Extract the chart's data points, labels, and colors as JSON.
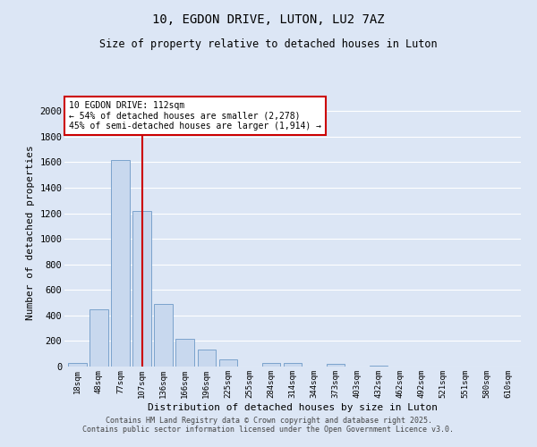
{
  "title_line1": "10, EGDON DRIVE, LUTON, LU2 7AZ",
  "title_line2": "Size of property relative to detached houses in Luton",
  "xlabel": "Distribution of detached houses by size in Luton",
  "ylabel": "Number of detached properties",
  "categories": [
    "18sqm",
    "48sqm",
    "77sqm",
    "107sqm",
    "136sqm",
    "166sqm",
    "196sqm",
    "225sqm",
    "255sqm",
    "284sqm",
    "314sqm",
    "344sqm",
    "373sqm",
    "403sqm",
    "432sqm",
    "462sqm",
    "492sqm",
    "521sqm",
    "551sqm",
    "580sqm",
    "610sqm"
  ],
  "values": [
    30,
    450,
    1620,
    1220,
    490,
    215,
    130,
    55,
    0,
    30,
    30,
    0,
    20,
    0,
    10,
    0,
    0,
    0,
    0,
    0,
    0
  ],
  "bar_color": "#c8d8ee",
  "bar_edgecolor": "#7ba3cc",
  "vline_x": 3,
  "vline_color": "#cc0000",
  "annotation_box_text": "10 EGDON DRIVE: 112sqm\n← 54% of detached houses are smaller (2,278)\n45% of semi-detached houses are larger (1,914) →",
  "annotation_box_color": "#cc0000",
  "ylim": [
    0,
    2100
  ],
  "yticks": [
    0,
    200,
    400,
    600,
    800,
    1000,
    1200,
    1400,
    1600,
    1800,
    2000
  ],
  "fig_background": "#dce6f5",
  "plot_background": "#dce6f5",
  "grid_color": "#ffffff",
  "footer_line1": "Contains HM Land Registry data © Crown copyright and database right 2025.",
  "footer_line2": "Contains public sector information licensed under the Open Government Licence v3.0."
}
